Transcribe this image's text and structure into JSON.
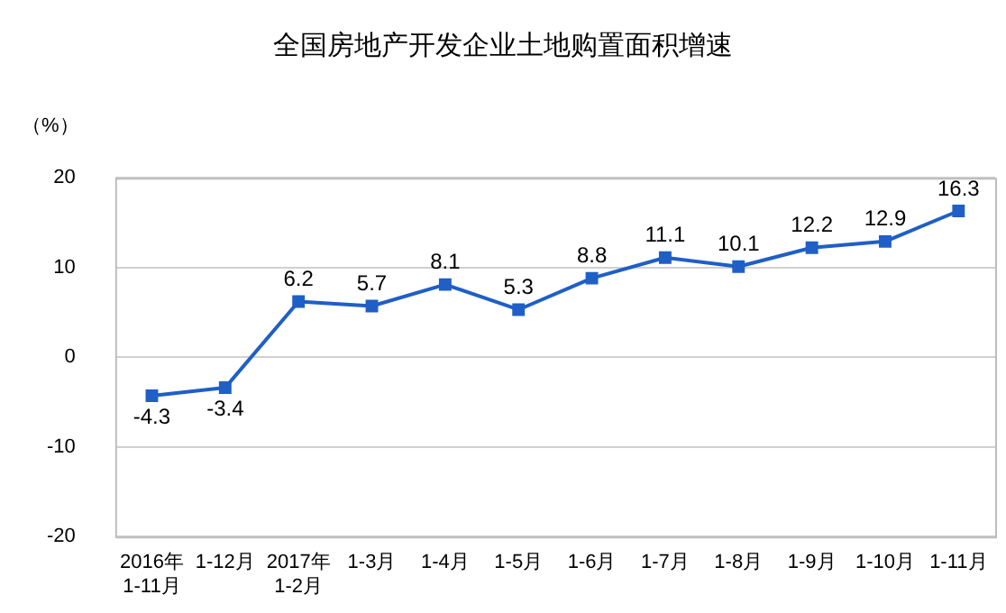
{
  "chart_data": {
    "type": "line",
    "title": "全国房地产开发企业土地购置面积增速",
    "ylabel": "（%）",
    "categories": [
      "2016年\n1-11月",
      "1-12月",
      "2017年\n1-2月",
      "1-3月",
      "1-4月",
      "1-5月",
      "1-6月",
      "1-7月",
      "1-8月",
      "1-9月",
      "1-10月",
      "1-11月"
    ],
    "series": [
      {
        "color": "#1f5fc6",
        "values": [
          -4.3,
          -3.4,
          6.2,
          5.7,
          8.1,
          5.3,
          8.8,
          11.1,
          10.1,
          12.2,
          12.9,
          16.3
        ]
      }
    ],
    "ylim": [
      -20,
      20
    ],
    "yticks": [
      -20,
      -10,
      0,
      10,
      20
    ],
    "grid": "y",
    "legend": false,
    "marker": "square",
    "line_style": "solid",
    "data_labels": true
  }
}
